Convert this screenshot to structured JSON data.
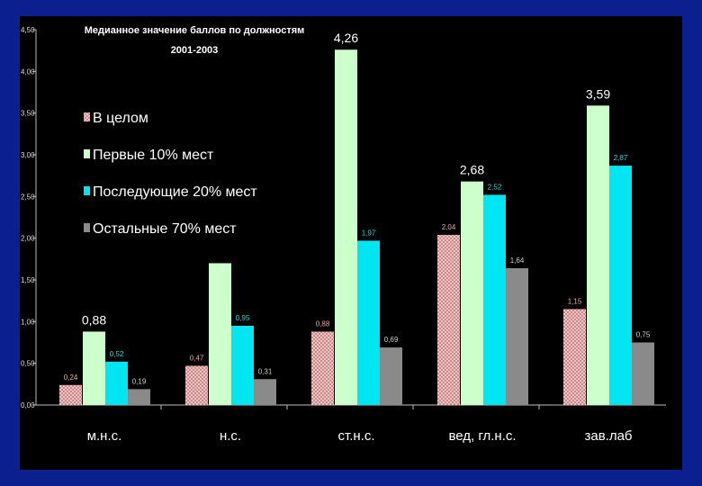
{
  "chart_data": {
    "type": "bar",
    "title_lines": [
      "Медианное значение баллов по должностям",
      "2001-2003"
    ],
    "categories": [
      "м.н.с.",
      "н.с.",
      "ст.н.с.",
      "вед, гл.н.с.",
      "зав.лаб"
    ],
    "y_ticks": [
      "0,00",
      "0,50",
      "1,00",
      "1,50",
      "2,00",
      "2,50",
      "3,00",
      "3,50",
      "4,00",
      "4,50"
    ],
    "ylim": [
      0,
      4.5
    ],
    "grid": false,
    "legend_position": "upper-left",
    "series": [
      {
        "name": "В целом",
        "color": "#e8a8a8",
        "pattern": "checker",
        "values": [
          0.24,
          0.47,
          0.88,
          2.04,
          1.15
        ],
        "labels": [
          "0,24",
          "0,47",
          "0,88",
          "2,04",
          "1,15"
        ]
      },
      {
        "name": "Первые 10% мест",
        "color": "#ccffcc",
        "pattern": "none",
        "values": [
          0.88,
          1.7,
          4.26,
          2.68,
          3.59
        ],
        "labels": [
          "0,88",
          "",
          "4,26",
          "2,68",
          "3,59"
        ]
      },
      {
        "name": "Последующие 20% мест",
        "color": "#00e5f2",
        "pattern": "none",
        "values": [
          0.52,
          0.95,
          1.97,
          2.52,
          2.87
        ],
        "labels": [
          "0,52",
          "0,95",
          "1,97",
          "2,52",
          "2,87"
        ]
      },
      {
        "name": "Остальные 70% мест",
        "color": "#8a8a8a",
        "pattern": "none",
        "values": [
          0.19,
          0.31,
          0.69,
          1.64,
          0.75
        ],
        "labels": [
          "0,19",
          "0,31",
          "0,69",
          "1,64",
          "0,75"
        ]
      }
    ]
  }
}
